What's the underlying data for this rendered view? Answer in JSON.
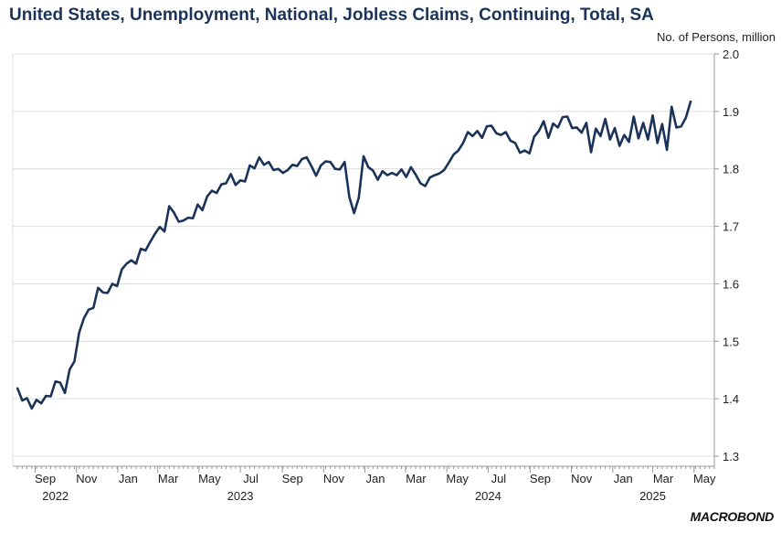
{
  "chart_data": {
    "type": "line",
    "title": "United States, Unemployment, National, Jobless Claims, Continuing, Total, SA",
    "ylabel": "No. of Persons, million",
    "ylim": [
      1.3,
      2.0
    ],
    "yticks": [
      "1.3",
      "1.4",
      "1.5",
      "1.6",
      "1.7",
      "1.8",
      "1.9",
      "2.0"
    ],
    "y_axis_side": "right",
    "grid": true,
    "x_start": "2022-08-06",
    "x_end": "2025-05-17",
    "x_range": [
      "2022-07-30",
      "2025-05-31"
    ],
    "month_ticks": [
      {
        "date": "2022-09-01",
        "label": "Sep"
      },
      {
        "date": "2022-11-01",
        "label": "Nov"
      },
      {
        "date": "2023-01-01",
        "label": "Jan"
      },
      {
        "date": "2023-03-01",
        "label": "Mar"
      },
      {
        "date": "2023-05-01",
        "label": "May"
      },
      {
        "date": "2023-07-01",
        "label": "Jul"
      },
      {
        "date": "2023-09-01",
        "label": "Sep"
      },
      {
        "date": "2023-11-01",
        "label": "Nov"
      },
      {
        "date": "2024-01-01",
        "label": "Jan"
      },
      {
        "date": "2024-03-01",
        "label": "Mar"
      },
      {
        "date": "2024-05-01",
        "label": "May"
      },
      {
        "date": "2024-07-01",
        "label": "Jul"
      },
      {
        "date": "2024-09-01",
        "label": "Sep"
      },
      {
        "date": "2024-11-01",
        "label": "Nov"
      },
      {
        "date": "2025-01-01",
        "label": "Jan"
      },
      {
        "date": "2025-03-01",
        "label": "Mar"
      },
      {
        "date": "2025-05-01",
        "label": "May"
      }
    ],
    "year_labels": [
      {
        "date": "2022-10-01",
        "label": "2022"
      },
      {
        "date": "2023-07-01",
        "label": "2023"
      },
      {
        "date": "2024-07-01",
        "label": "2024"
      },
      {
        "date": "2025-03-01",
        "label": "2025"
      }
    ],
    "series": [
      {
        "color": "#1b3358",
        "values": [
          1.418,
          1.397,
          1.401,
          1.383,
          1.398,
          1.392,
          1.405,
          1.404,
          1.43,
          1.428,
          1.41,
          1.451,
          1.465,
          1.515,
          1.54,
          1.555,
          1.558,
          1.593,
          1.585,
          1.584,
          1.6,
          1.596,
          1.625,
          1.635,
          1.641,
          1.635,
          1.661,
          1.658,
          1.673,
          1.687,
          1.699,
          1.691,
          1.735,
          1.724,
          1.708,
          1.71,
          1.715,
          1.714,
          1.738,
          1.728,
          1.752,
          1.762,
          1.758,
          1.773,
          1.775,
          1.791,
          1.772,
          1.78,
          1.778,
          1.806,
          1.801,
          1.82,
          1.807,
          1.812,
          1.798,
          1.8,
          1.793,
          1.798,
          1.807,
          1.805,
          1.817,
          1.82,
          1.805,
          1.788,
          1.806,
          1.813,
          1.812,
          1.8,
          1.799,
          1.812,
          1.751,
          1.723,
          1.75,
          1.822,
          1.803,
          1.797,
          1.781,
          1.796,
          1.789,
          1.793,
          1.789,
          1.799,
          1.786,
          1.803,
          1.79,
          1.775,
          1.77,
          1.785,
          1.789,
          1.792,
          1.798,
          1.811,
          1.825,
          1.832,
          1.845,
          1.864,
          1.857,
          1.866,
          1.854,
          1.874,
          1.875,
          1.862,
          1.859,
          1.864,
          1.849,
          1.845,
          1.828,
          1.832,
          1.827,
          1.856,
          1.866,
          1.883,
          1.854,
          1.879,
          1.872,
          1.89,
          1.891,
          1.871,
          1.872,
          1.863,
          1.88,
          1.829,
          1.87,
          1.857,
          1.887,
          1.851,
          1.871,
          1.84,
          1.859,
          1.847,
          1.891,
          1.853,
          1.88,
          1.851,
          1.893,
          1.845,
          1.878,
          1.833,
          1.908,
          1.872,
          1.874,
          1.889,
          1.917
        ]
      }
    ]
  },
  "branding": {
    "logo_text": "MACROBOND"
  }
}
